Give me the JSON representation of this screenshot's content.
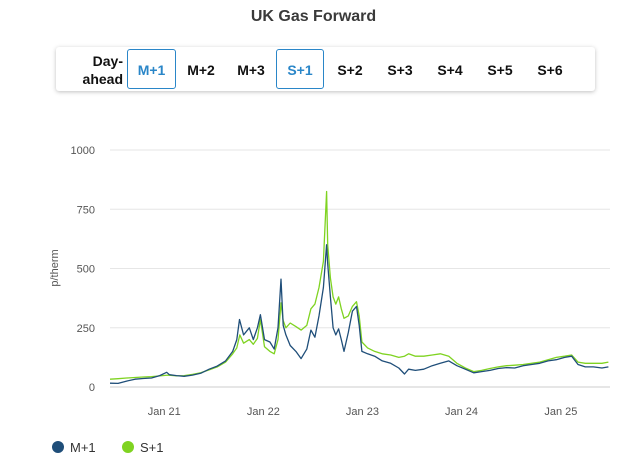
{
  "title": "UK Gas Forward",
  "tabs": [
    {
      "label": "Day-ahead",
      "active": false
    },
    {
      "label": "M+1",
      "active": true
    },
    {
      "label": "M+2",
      "active": false
    },
    {
      "label": "M+3",
      "active": false
    },
    {
      "label": "S+1",
      "active": true
    },
    {
      "label": "S+2",
      "active": false
    },
    {
      "label": "S+3",
      "active": false
    },
    {
      "label": "S+4",
      "active": false
    },
    {
      "label": "S+5",
      "active": false
    },
    {
      "label": "S+6",
      "active": false
    }
  ],
  "colors": {
    "accent": "#2a86c8",
    "m1": "#1f4e79",
    "s1": "#7fd321",
    "grid": "#e6e6e6"
  },
  "chart_data": {
    "type": "line",
    "ylabel": "p/therm",
    "ylim": [
      0,
      1000
    ],
    "yticks": [
      0,
      250,
      500,
      750,
      1000
    ],
    "xlim": [
      "2020-06-15",
      "2025-07-01"
    ],
    "xticks": [
      {
        "date": "2021-01-01",
        "label": "Jan 21"
      },
      {
        "date": "2022-01-01",
        "label": "Jan 22"
      },
      {
        "date": "2023-01-01",
        "label": "Jan 23"
      },
      {
        "date": "2024-01-01",
        "label": "Jan 24"
      },
      {
        "date": "2025-01-01",
        "label": "Jan 25"
      }
    ],
    "grid": true,
    "legend": "bottom-left",
    "series": [
      {
        "name": "M+1",
        "points": [
          [
            "2020-06-15",
            16
          ],
          [
            "2020-07-15",
            15
          ],
          [
            "2020-08-15",
            25
          ],
          [
            "2020-09-15",
            33
          ],
          [
            "2020-10-15",
            36
          ],
          [
            "2020-11-15",
            38
          ],
          [
            "2020-12-15",
            48
          ],
          [
            "2021-01-10",
            62
          ],
          [
            "2021-01-20",
            52
          ],
          [
            "2021-02-15",
            48
          ],
          [
            "2021-03-15",
            45
          ],
          [
            "2021-04-15",
            50
          ],
          [
            "2021-05-15",
            58
          ],
          [
            "2021-06-15",
            75
          ],
          [
            "2021-07-15",
            88
          ],
          [
            "2021-08-15",
            110
          ],
          [
            "2021-09-10",
            150
          ],
          [
            "2021-09-25",
            200
          ],
          [
            "2021-10-05",
            285
          ],
          [
            "2021-10-20",
            220
          ],
          [
            "2021-11-10",
            250
          ],
          [
            "2021-11-25",
            200
          ],
          [
            "2021-12-10",
            250
          ],
          [
            "2021-12-21",
            305
          ],
          [
            "2022-01-05",
            200
          ],
          [
            "2022-01-25",
            190
          ],
          [
            "2022-02-10",
            160
          ],
          [
            "2022-02-24",
            250
          ],
          [
            "2022-03-07",
            455
          ],
          [
            "2022-03-15",
            260
          ],
          [
            "2022-03-25",
            220
          ],
          [
            "2022-04-10",
            175
          ],
          [
            "2022-05-01",
            150
          ],
          [
            "2022-05-20",
            120
          ],
          [
            "2022-06-10",
            160
          ],
          [
            "2022-06-25",
            240
          ],
          [
            "2022-07-10",
            210
          ],
          [
            "2022-07-25",
            300
          ],
          [
            "2022-08-10",
            420
          ],
          [
            "2022-08-22",
            600
          ],
          [
            "2022-08-26",
            520
          ],
          [
            "2022-09-05",
            380
          ],
          [
            "2022-09-15",
            250
          ],
          [
            "2022-09-25",
            220
          ],
          [
            "2022-10-05",
            245
          ],
          [
            "2022-10-15",
            200
          ],
          [
            "2022-10-25",
            150
          ],
          [
            "2022-11-10",
            230
          ],
          [
            "2022-11-25",
            320
          ],
          [
            "2022-12-10",
            340
          ],
          [
            "2022-12-20",
            260
          ],
          [
            "2022-12-30",
            150
          ],
          [
            "2023-01-20",
            140
          ],
          [
            "2023-02-15",
            130
          ],
          [
            "2023-03-15",
            110
          ],
          [
            "2023-04-15",
            100
          ],
          [
            "2023-05-15",
            80
          ],
          [
            "2023-06-05",
            55
          ],
          [
            "2023-06-20",
            75
          ],
          [
            "2023-07-15",
            70
          ],
          [
            "2023-08-15",
            75
          ],
          [
            "2023-09-15",
            90
          ],
          [
            "2023-10-15",
            100
          ],
          [
            "2023-11-15",
            110
          ],
          [
            "2023-12-15",
            90
          ],
          [
            "2024-01-15",
            75
          ],
          [
            "2024-02-15",
            60
          ],
          [
            "2024-03-15",
            65
          ],
          [
            "2024-04-15",
            70
          ],
          [
            "2024-05-15",
            78
          ],
          [
            "2024-06-15",
            82
          ],
          [
            "2024-07-15",
            80
          ],
          [
            "2024-08-15",
            90
          ],
          [
            "2024-09-15",
            95
          ],
          [
            "2024-10-15",
            100
          ],
          [
            "2024-11-15",
            110
          ],
          [
            "2024-12-15",
            115
          ],
          [
            "2025-01-15",
            125
          ],
          [
            "2025-02-10",
            130
          ],
          [
            "2025-03-05",
            95
          ],
          [
            "2025-04-01",
            85
          ],
          [
            "2025-05-01",
            85
          ],
          [
            "2025-06-01",
            80
          ],
          [
            "2025-06-25",
            85
          ]
        ]
      },
      {
        "name": "S+1",
        "points": [
          [
            "2020-06-15",
            33
          ],
          [
            "2020-07-15",
            35
          ],
          [
            "2020-08-15",
            38
          ],
          [
            "2020-09-15",
            40
          ],
          [
            "2020-10-15",
            42
          ],
          [
            "2020-11-15",
            44
          ],
          [
            "2020-12-15",
            47
          ],
          [
            "2021-01-15",
            50
          ],
          [
            "2021-02-15",
            47
          ],
          [
            "2021-03-15",
            48
          ],
          [
            "2021-04-15",
            53
          ],
          [
            "2021-05-15",
            60
          ],
          [
            "2021-06-15",
            72
          ],
          [
            "2021-07-15",
            85
          ],
          [
            "2021-08-15",
            105
          ],
          [
            "2021-09-10",
            140
          ],
          [
            "2021-09-25",
            165
          ],
          [
            "2021-10-06",
            220
          ],
          [
            "2021-10-20",
            185
          ],
          [
            "2021-11-10",
            200
          ],
          [
            "2021-11-25",
            180
          ],
          [
            "2021-12-10",
            205
          ],
          [
            "2021-12-21",
            285
          ],
          [
            "2022-01-05",
            170
          ],
          [
            "2022-01-25",
            150
          ],
          [
            "2022-02-10",
            140
          ],
          [
            "2022-02-24",
            200
          ],
          [
            "2022-03-07",
            355
          ],
          [
            "2022-03-15",
            280
          ],
          [
            "2022-03-25",
            250
          ],
          [
            "2022-04-10",
            270
          ],
          [
            "2022-05-01",
            255
          ],
          [
            "2022-05-20",
            240
          ],
          [
            "2022-06-10",
            260
          ],
          [
            "2022-06-25",
            330
          ],
          [
            "2022-07-10",
            350
          ],
          [
            "2022-07-25",
            420
          ],
          [
            "2022-08-10",
            530
          ],
          [
            "2022-08-22",
            825
          ],
          [
            "2022-08-26",
            600
          ],
          [
            "2022-09-05",
            460
          ],
          [
            "2022-09-15",
            380
          ],
          [
            "2022-09-25",
            350
          ],
          [
            "2022-10-05",
            380
          ],
          [
            "2022-10-15",
            330
          ],
          [
            "2022-10-25",
            290
          ],
          [
            "2022-11-10",
            300
          ],
          [
            "2022-11-25",
            340
          ],
          [
            "2022-12-10",
            360
          ],
          [
            "2022-12-20",
            300
          ],
          [
            "2022-12-30",
            190
          ],
          [
            "2023-01-20",
            165
          ],
          [
            "2023-02-15",
            150
          ],
          [
            "2023-03-15",
            140
          ],
          [
            "2023-04-15",
            135
          ],
          [
            "2023-05-15",
            125
          ],
          [
            "2023-06-05",
            130
          ],
          [
            "2023-06-20",
            140
          ],
          [
            "2023-07-15",
            130
          ],
          [
            "2023-08-15",
            130
          ],
          [
            "2023-09-15",
            135
          ],
          [
            "2023-10-15",
            140
          ],
          [
            "2023-11-15",
            130
          ],
          [
            "2023-12-15",
            100
          ],
          [
            "2024-01-15",
            80
          ],
          [
            "2024-02-15",
            65
          ],
          [
            "2024-03-15",
            70
          ],
          [
            "2024-04-15",
            78
          ],
          [
            "2024-05-15",
            85
          ],
          [
            "2024-06-15",
            90
          ],
          [
            "2024-07-15",
            92
          ],
          [
            "2024-08-15",
            95
          ],
          [
            "2024-09-15",
            100
          ],
          [
            "2024-10-15",
            105
          ],
          [
            "2024-11-15",
            115
          ],
          [
            "2024-12-15",
            125
          ],
          [
            "2025-01-15",
            130
          ],
          [
            "2025-02-10",
            135
          ],
          [
            "2025-03-05",
            105
          ],
          [
            "2025-04-01",
            100
          ],
          [
            "2025-05-01",
            100
          ],
          [
            "2025-06-01",
            100
          ],
          [
            "2025-06-25",
            105
          ]
        ]
      }
    ]
  }
}
